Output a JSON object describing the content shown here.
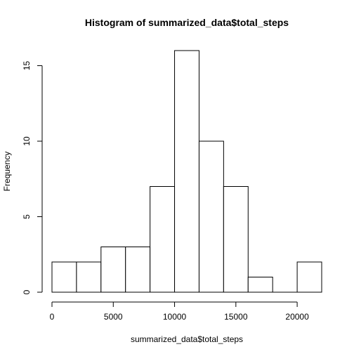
{
  "chart_data": {
    "type": "bar",
    "title": "Histogram of summarized_data$total_steps",
    "xlabel": "summarized_data$total_steps",
    "ylabel": "Frequency",
    "bin_edges": [
      0,
      2000,
      4000,
      6000,
      8000,
      10000,
      12000,
      14000,
      16000,
      18000,
      20000,
      22000
    ],
    "values": [
      2,
      2,
      3,
      3,
      7,
      16,
      10,
      7,
      1,
      0,
      2
    ],
    "xlim": [
      0,
      22000
    ],
    "ylim": [
      0,
      16
    ],
    "x_ticks": [
      0,
      5000,
      10000,
      15000,
      20000
    ],
    "y_ticks": [
      0,
      5,
      10,
      15
    ],
    "grid": false,
    "legend": "none",
    "colors": {
      "bar_fill": "#ffffff",
      "bar_stroke": "#000000"
    }
  }
}
